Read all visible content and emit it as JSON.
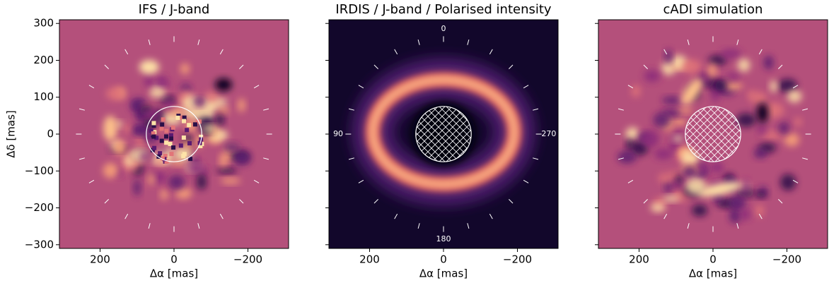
{
  "chart_data": [
    {
      "type": "image",
      "title": "IFS / J-band",
      "xlabel": "Δα [mas]",
      "ylabel": "Δδ [mas]",
      "xlim": [
        310,
        -310
      ],
      "ylim": [
        -310,
        310
      ],
      "xticks": [
        200,
        0,
        {
          "value": -200,
          "label": "−200"
        }
      ],
      "yticks": [
        {
          "value": -300,
          "label": "−300"
        },
        {
          "value": -200,
          "label": "−200"
        },
        {
          "value": -100,
          "label": "−100"
        },
        0,
        100,
        200,
        300
      ],
      "mask_radius": 75,
      "mask_hatch": false,
      "pa_tick_radius": 250,
      "pa_tick_step": 15
    },
    {
      "type": "image",
      "title": "IRDIS / J-band / Polarised intensity",
      "xlabel": "Δα [mas]",
      "xlim": [
        310,
        -310
      ],
      "ylim": [
        -310,
        310
      ],
      "xticks": [
        200,
        0,
        {
          "value": -200,
          "label": "−200"
        }
      ],
      "yticks": [
        -300,
        -200,
        -100,
        0,
        100,
        200,
        300
      ],
      "ytick_labels": false,
      "mask_radius": 75,
      "mask_hatch": true,
      "pa_tick_radius": 250,
      "pa_tick_step": 15,
      "angle_labels": [
        0,
        90,
        180,
        270
      ]
    },
    {
      "type": "image",
      "title": "cADI simulation",
      "xlabel": "Δα [mas]",
      "xlim": [
        310,
        -310
      ],
      "ylim": [
        -310,
        310
      ],
      "xticks": [
        200,
        0,
        {
          "value": -200,
          "label": "−200"
        }
      ],
      "yticks": [
        -300,
        -200,
        -100,
        0,
        100,
        200,
        300
      ],
      "ytick_labels": false,
      "mask_radius": 75,
      "mask_hatch": true,
      "pa_tick_radius": 250,
      "pa_tick_step": 15
    }
  ]
}
